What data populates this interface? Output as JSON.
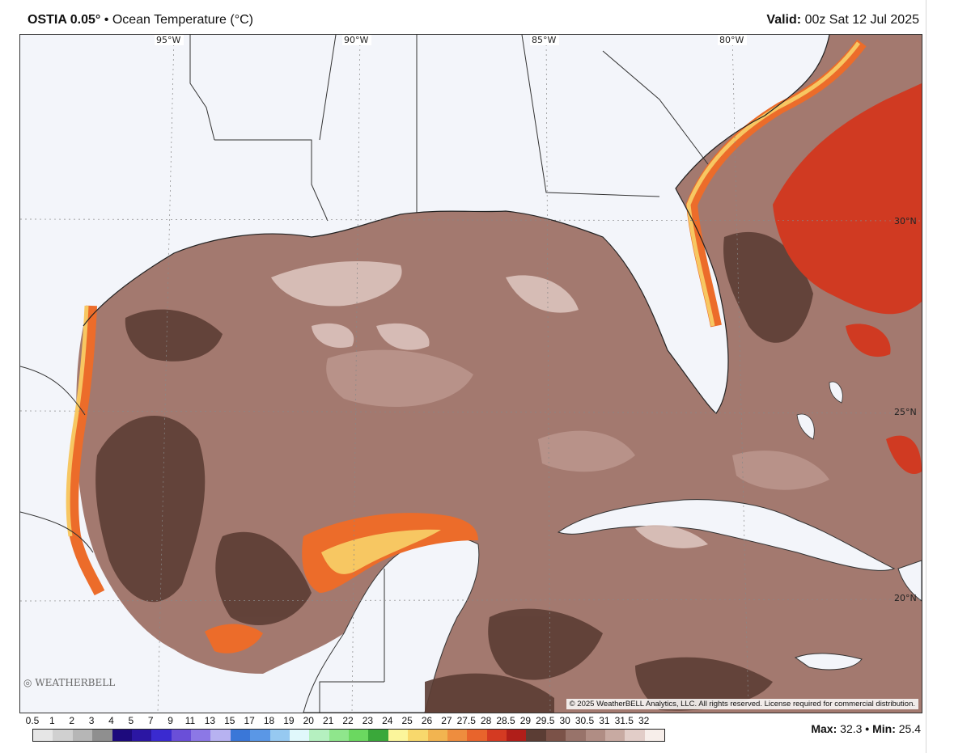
{
  "header": {
    "model": "OSTIA 0.05",
    "degree": "°",
    "separator": "•",
    "variable": "Ocean Temperature (°C)",
    "valid_label": "Valid:",
    "valid_time": "00z Sat 12 Jul 2025"
  },
  "map": {
    "lon_labels": [
      "95°W",
      "90°W",
      "85°W",
      "80°W"
    ],
    "lat_labels": [
      "30°N",
      "25°N",
      "20°N"
    ],
    "copyright": "© 2025 WeatherBELL Analytics, LLC. All rights reserved. License required for commercial distribution.",
    "logo_text": "WEATHERBELL"
  },
  "legend": {
    "ticks": [
      "0.5",
      "1",
      "2",
      "3",
      "4",
      "5",
      "7",
      "9",
      "11",
      "13",
      "15",
      "17",
      "18",
      "19",
      "20",
      "21",
      "22",
      "23",
      "24",
      "25",
      "26",
      "27",
      "27.5",
      "28",
      "28.5",
      "29",
      "29.5",
      "30",
      "30.5",
      "31",
      "31.5",
      "32"
    ],
    "colors": [
      "#e6e6e6",
      "#d0d0d0",
      "#b6b6b6",
      "#8f8f8f",
      "#1d0a7d",
      "#2b16a3",
      "#3a2ad0",
      "#6a4fd8",
      "#8c78e6",
      "#b7b2f1",
      "#3a77d8",
      "#5a97e6",
      "#96c9f1",
      "#e0f8fb",
      "#b5f0c0",
      "#8fe68c",
      "#6bd860",
      "#3aa83a",
      "#fbf59b",
      "#f8d86c",
      "#f2b450",
      "#ee8d3e",
      "#e8642c",
      "#d43a22",
      "#b01e19",
      "#5b3d34",
      "#7b5248",
      "#98736a",
      "#b08d84",
      "#c8aaa2",
      "#e2cdc8",
      "#f7eeea"
    ]
  },
  "stats": {
    "max_label": "Max:",
    "max_value": "32.3",
    "bullet": "•",
    "min_label": "Min:",
    "min_value": "25.4"
  },
  "colors": {
    "land": "#f3f5fa",
    "gulf_base": "#a3796f",
    "warm_deep": "#5c3d34",
    "cool_light": "#dcc3bd",
    "hot_red": "#d03a22",
    "hot_orange": "#ec6c2a",
    "hot_yellow": "#f7c762",
    "borders": "#333333"
  }
}
